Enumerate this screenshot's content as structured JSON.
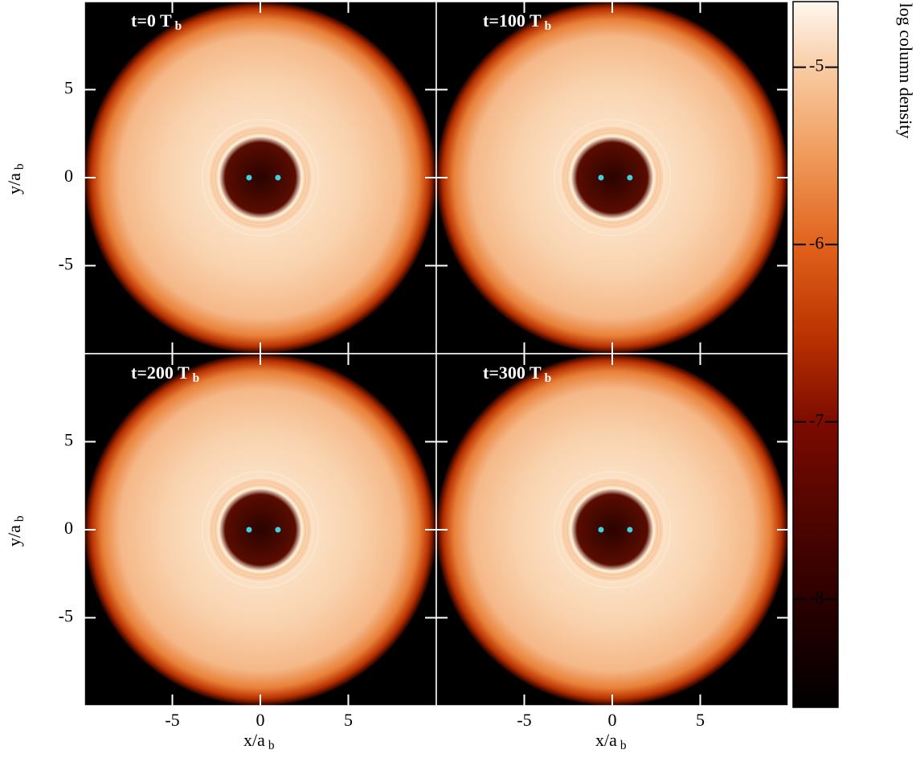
{
  "chart_data": [
    {
      "type": "density-map",
      "title": "t=0 T",
      "title_sub": "b",
      "xlim": [
        -10,
        10
      ],
      "ylim": [
        -10,
        10
      ],
      "xticks": [
        -5,
        0,
        5
      ],
      "yticks": [
        -5,
        0,
        5
      ],
      "ylabel": "y/a",
      "ylabel_sub": "b",
      "stars": {
        "x": [
          -0.64,
          1.0
        ],
        "y": [
          0,
          0
        ],
        "color": "#3fd0e0"
      }
    },
    {
      "type": "density-map",
      "title": "t=100 T",
      "title_sub": "b",
      "xlim": [
        -10,
        10
      ],
      "ylim": [
        -10,
        10
      ],
      "xticks": [
        -5,
        0,
        5
      ],
      "yticks": [
        -5,
        0,
        5
      ],
      "stars": {
        "x": [
          -0.64,
          1.0
        ],
        "y": [
          0,
          0
        ],
        "color": "#3fd0e0"
      }
    },
    {
      "type": "density-map",
      "title": "t=200 T",
      "title_sub": "b",
      "xlim": [
        -10,
        10
      ],
      "ylim": [
        -10,
        10
      ],
      "xticks": [
        -5,
        0,
        5
      ],
      "yticks": [
        -5,
        0,
        5
      ],
      "xlabel": "x/a",
      "xlabel_sub": "b",
      "ylabel": "y/a",
      "ylabel_sub": "b",
      "stars": {
        "x": [
          -0.64,
          1.0
        ],
        "y": [
          0,
          0
        ],
        "color": "#3fd0e0"
      }
    },
    {
      "type": "density-map",
      "title": "t=300 T",
      "title_sub": "b",
      "xlim": [
        -10,
        10
      ],
      "ylim": [
        -10,
        10
      ],
      "xticks": [
        -5,
        0,
        5
      ],
      "yticks": [
        -5,
        0,
        5
      ],
      "xlabel": "x/a",
      "xlabel_sub": "b",
      "stars": {
        "x": [
          -0.64,
          1.0
        ],
        "y": [
          0,
          0
        ],
        "color": "#3fd0e0"
      }
    }
  ],
  "colorbar": {
    "label": "log column density",
    "lim": [
      -8.61,
      -4.63
    ],
    "ticks": [
      -5,
      -6,
      -7,
      -8
    ]
  }
}
